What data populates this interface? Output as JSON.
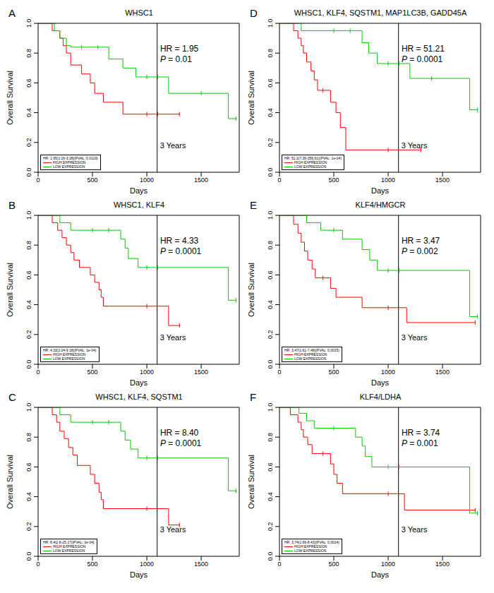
{
  "chart_data": [
    {
      "panel": "A",
      "type": "line",
      "line_style": "step",
      "marker": "censor",
      "title": "WHSC1",
      "x_label": "Days",
      "y_label": "Overall Survival",
      "xlim": [
        0,
        1850
      ],
      "xticks": [
        0,
        500,
        1000,
        1500
      ],
      "ylim": [
        0,
        1
      ],
      "yticks": [
        {
          "value": 0,
          "label": "0.0"
        },
        0.2,
        0.4,
        0.6,
        0.8,
        {
          "value": 1,
          "label": "1.0"
        }
      ],
      "legend": "bottom-left",
      "reference_line": {
        "x": 1095,
        "label": "3 Years"
      },
      "annotations": {
        "hr": "HR = 1.95",
        "p": "P = 0.01",
        "detail": "HR: 1.95(1.16-3.28)(PVAL: 0.0119)"
      },
      "series": [
        {
          "name": "HIGH EXPRESSION",
          "color": "#ff0000",
          "x": [
            0,
            130,
            200,
            230,
            260,
            300,
            400,
            480,
            520,
            600,
            780,
            1300
          ],
          "values": [
            1,
            0.95,
            0.9,
            0.85,
            0.8,
            0.72,
            0.66,
            0.6,
            0.53,
            0.47,
            0.39,
            0.39
          ],
          "censored": [
            1000,
            1100,
            1300
          ]
        },
        {
          "name": "LOW EXPRESSION",
          "color": "#00cc00",
          "x": [
            0,
            150,
            200,
            260,
            300,
            650,
            780,
            900,
            1200,
            1750,
            1820
          ],
          "values": [
            1,
            0.95,
            0.9,
            0.85,
            0.84,
            0.76,
            0.7,
            0.64,
            0.53,
            0.36,
            0.36
          ],
          "censored": [
            400,
            550,
            1000,
            1100,
            1500,
            1820
          ]
        }
      ]
    },
    {
      "panel": "B",
      "type": "line",
      "line_style": "step",
      "marker": "censor",
      "title": "WHSC1, KLF4",
      "x_label": "Days",
      "y_label": "Overall Survival",
      "xlim": [
        0,
        1850
      ],
      "xticks": [
        0,
        500,
        1000,
        1500
      ],
      "ylim": [
        0,
        1
      ],
      "yticks": [
        {
          "value": 0,
          "label": "0.0"
        },
        0.2,
        0.4,
        0.6,
        0.8,
        {
          "value": 1,
          "label": "1.0"
        }
      ],
      "legend": "bottom-left",
      "reference_line": {
        "x": 1095,
        "label": "3 Years"
      },
      "annotations": {
        "hr": "HR = 4.33",
        "p": "P = 0.0001",
        "detail": "HR: 4.33(2.04-9.18)(PVAL: 1e-04)"
      },
      "series": [
        {
          "name": "HIGH EXPRESSION",
          "color": "#ff0000",
          "x": [
            0,
            130,
            180,
            220,
            260,
            300,
            330,
            380,
            480,
            520,
            560,
            580,
            600,
            1200,
            1300
          ],
          "values": [
            1,
            0.95,
            0.9,
            0.85,
            0.8,
            0.75,
            0.7,
            0.65,
            0.6,
            0.55,
            0.5,
            0.45,
            0.39,
            0.26,
            0.26
          ],
          "censored": [
            1000,
            1300
          ]
        },
        {
          "name": "LOW EXPRESSION",
          "color": "#00cc00",
          "x": [
            0,
            200,
            300,
            760,
            800,
            830,
            920,
            1750,
            1820
          ],
          "values": [
            1,
            0.95,
            0.9,
            0.84,
            0.78,
            0.71,
            0.65,
            0.43,
            0.43
          ],
          "censored": [
            500,
            650,
            1000,
            1100,
            1820
          ]
        }
      ]
    },
    {
      "panel": "C",
      "type": "line",
      "line_style": "step",
      "marker": "censor",
      "title": "WHSC1, KLF4, SQSTM1",
      "x_label": "Days",
      "y_label": "Overall Survival",
      "xlim": [
        0,
        1850
      ],
      "xticks": [
        0,
        500,
        1000,
        1500
      ],
      "ylim": [
        0,
        1
      ],
      "yticks": [
        {
          "value": 0,
          "label": "0.0"
        },
        0.2,
        0.4,
        0.6,
        0.8,
        {
          "value": 1,
          "label": "1.0"
        }
      ],
      "legend": "bottom-left",
      "reference_line": {
        "x": 1095,
        "label": "3 Years"
      },
      "annotations": {
        "hr": "HR = 8.40",
        "p": "P = 0.0001",
        "detail": "HR: 8.4(2.8-25.17)(PVAL: 1e-04)"
      },
      "series": [
        {
          "name": "HIGH EXPRESSION",
          "color": "#ff0000",
          "x": [
            0,
            130,
            170,
            200,
            240,
            280,
            320,
            360,
            480,
            520,
            560,
            580,
            600,
            1200,
            1300
          ],
          "values": [
            1,
            0.95,
            0.9,
            0.84,
            0.79,
            0.73,
            0.68,
            0.61,
            0.55,
            0.49,
            0.43,
            0.38,
            0.32,
            0.21,
            0.21
          ],
          "censored": [
            1000,
            1300
          ]
        },
        {
          "name": "LOW EXPRESSION",
          "color": "#00cc00",
          "x": [
            0,
            200,
            300,
            760,
            800,
            850,
            920,
            1750,
            1820
          ],
          "values": [
            1,
            0.95,
            0.9,
            0.84,
            0.78,
            0.72,
            0.66,
            0.44,
            0.44
          ],
          "censored": [
            500,
            650,
            1000,
            1100,
            1820
          ]
        }
      ]
    },
    {
      "panel": "D",
      "type": "line",
      "line_style": "step",
      "marker": "censor",
      "title": "WHSC1, KLF4, SQSTM1, MAP1LC3B, GADD45A",
      "x_label": "Days",
      "y_label": "Overall Survival",
      "xlim": [
        0,
        1850
      ],
      "xticks": [
        0,
        500,
        1000,
        1500
      ],
      "ylim": [
        0,
        1
      ],
      "yticks": [
        {
          "value": 0,
          "label": "0.0"
        },
        0.2,
        0.4,
        0.6,
        0.8,
        {
          "value": 1,
          "label": "1.0"
        }
      ],
      "legend": "bottom-left",
      "reference_line": {
        "x": 1095,
        "label": "3 Years"
      },
      "annotations": {
        "hr": "HR = 51.21",
        "p": "P = 0.0001",
        "detail": "HR: 51.2(7.36-356.61)(PVAL: 1e-04)"
      },
      "series": [
        {
          "name": "HIGH EXPRESSION",
          "color": "#ff0000",
          "x": [
            0,
            130,
            170,
            200,
            220,
            250,
            290,
            320,
            350,
            470,
            520,
            560,
            610,
            1300
          ],
          "values": [
            1,
            0.95,
            0.9,
            0.85,
            0.8,
            0.74,
            0.68,
            0.62,
            0.55,
            0.47,
            0.4,
            0.3,
            0.15,
            0.15
          ],
          "censored": [
            400,
            1000,
            1300
          ]
        },
        {
          "name": "LOW EXPRESSION",
          "color": "#00cc00",
          "x": [
            0,
            200,
            760,
            820,
            900,
            1200,
            1750,
            1820
          ],
          "values": [
            1,
            0.95,
            0.87,
            0.8,
            0.73,
            0.63,
            0.42,
            0.42
          ],
          "censored": [
            500,
            650,
            1000,
            1100,
            1400,
            1820
          ]
        }
      ]
    },
    {
      "panel": "E",
      "type": "line",
      "line_style": "step",
      "marker": "censor",
      "title": "KLF4/HMGCR",
      "x_label": "Days",
      "y_label": "Overall Survival",
      "xlim": [
        0,
        1850
      ],
      "xticks": [
        0,
        500,
        1000,
        1500
      ],
      "ylim": [
        0,
        1
      ],
      "yticks": [
        {
          "value": 0,
          "label": "0.0"
        },
        0.2,
        0.4,
        0.6,
        0.8,
        {
          "value": 1,
          "label": "1.0"
        }
      ],
      "legend": "bottom-left",
      "reference_line": {
        "x": 1095,
        "label": "3 Years"
      },
      "annotations": {
        "hr": "HR = 3.47",
        "p": "P = 0.002",
        "detail": "HR: 3.47(1.61-7.48)(PVAL: 0.0015)"
      },
      "series": [
        {
          "name": "HIGH EXPRESSION",
          "color": "#ff0000",
          "x": [
            0,
            130,
            170,
            200,
            230,
            260,
            300,
            330,
            470,
            520,
            760,
            1170,
            1800
          ],
          "values": [
            1,
            0.94,
            0.88,
            0.82,
            0.76,
            0.7,
            0.64,
            0.58,
            0.51,
            0.45,
            0.38,
            0.28,
            0.28
          ],
          "censored": [
            400,
            1000,
            1800
          ]
        },
        {
          "name": "LOW EXPRESSION",
          "color": "#00cc00",
          "x": [
            0,
            250,
            380,
            580,
            760,
            830,
            900,
            1750,
            1820
          ],
          "values": [
            1,
            0.95,
            0.9,
            0.84,
            0.77,
            0.7,
            0.63,
            0.32,
            0.32
          ],
          "censored": [
            500,
            1000,
            1100,
            1820
          ]
        }
      ]
    },
    {
      "panel": "F",
      "type": "line",
      "line_style": "step",
      "marker": "censor",
      "title": "KLF4/LDHA",
      "x_label": "Days",
      "y_label": "Overall Survival",
      "xlim": [
        0,
        1850
      ],
      "xticks": [
        0,
        500,
        1000,
        1500
      ],
      "ylim": [
        0,
        1
      ],
      "yticks": [
        {
          "value": 0,
          "label": "0.0"
        },
        0.2,
        0.4,
        0.6,
        0.8,
        {
          "value": 1,
          "label": "1.0"
        }
      ],
      "legend": "bottom-left",
      "reference_line": {
        "x": 1095,
        "label": "3 Years"
      },
      "annotations": {
        "hr": "HR = 3.74",
        "p": "P = 0.001",
        "detail": "HR: 3.74(1.66-8.43)(PVAL: 0.0014)"
      },
      "series": [
        {
          "name": "HIGH EXPRESSION",
          "color": "#ff0000",
          "x": [
            0,
            100,
            170,
            200,
            220,
            260,
            300,
            470,
            500,
            530,
            580,
            1150,
            1800
          ],
          "values": [
            1,
            0.95,
            0.9,
            0.85,
            0.8,
            0.75,
            0.69,
            0.62,
            0.55,
            0.49,
            0.42,
            0.31,
            0.31
          ],
          "censored": [
            400,
            1000,
            1800
          ]
        },
        {
          "name": "LOW EXPRESSION",
          "color": "#00cc00",
          "x": [
            0,
            180,
            250,
            320,
            700,
            760,
            790,
            850,
            1750,
            1820
          ],
          "values": [
            1,
            0.96,
            0.91,
            0.86,
            0.8,
            0.74,
            0.67,
            0.6,
            0.29,
            0.29
          ],
          "censored": [
            500,
            1000,
            1100,
            1820
          ]
        }
      ]
    }
  ]
}
